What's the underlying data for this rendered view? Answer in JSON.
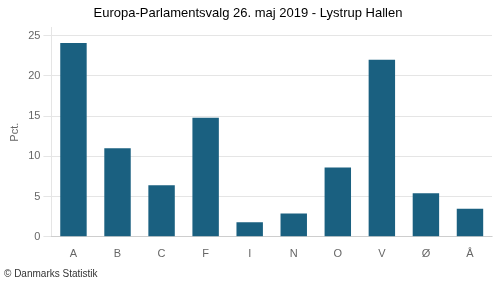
{
  "chart_data": {
    "type": "bar",
    "title": "Europa-Parlamentsvalg 26. maj 2019 - Lystrup Hallen",
    "categories": [
      "A",
      "B",
      "C",
      "F",
      "I",
      "N",
      "O",
      "V",
      "Ø",
      "Å"
    ],
    "values": [
      24.1,
      11.0,
      6.4,
      14.8,
      1.8,
      2.9,
      8.6,
      22.0,
      5.4,
      3.5
    ],
    "color": "#1a6080",
    "ylabel": "Pct.",
    "ylim": [
      0,
      26
    ],
    "yticks": [
      0,
      5,
      10,
      15,
      20,
      25
    ],
    "grid": true,
    "annotations": [
      "© Danmarks Statistik"
    ]
  }
}
